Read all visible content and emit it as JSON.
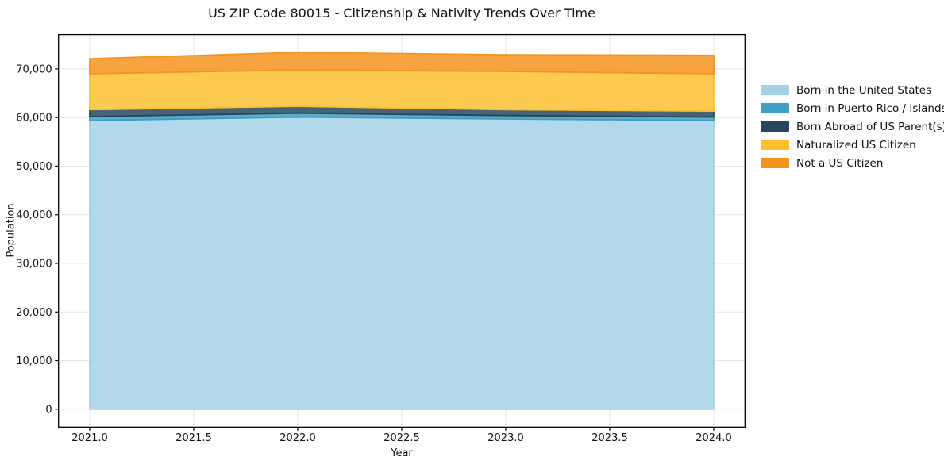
{
  "title": "US ZIP Code 80015 - Citizenship & Nativity Trends Over Time",
  "chart_data": {
    "type": "area",
    "stacked": true,
    "title": "US ZIP Code 80015 - Citizenship & Nativity Trends Over Time",
    "xlabel": "Year",
    "ylabel": "Population",
    "x": [
      2021,
      2022,
      2023,
      2024
    ],
    "series": [
      {
        "name": "Born in the United States",
        "color": "#a5d1e8",
        "values": [
          59400,
          60100,
          59700,
          59400
        ]
      },
      {
        "name": "Born in Puerto Rico / Islands",
        "color": "#3d9fc2",
        "values": [
          800,
          800,
          700,
          700
        ]
      },
      {
        "name": "Born Abroad of US Parent(s)",
        "color": "#27485c",
        "values": [
          1400,
          1400,
          1200,
          1200
        ]
      },
      {
        "name": "Naturalized US Citizen",
        "color": "#fcc133",
        "values": [
          7400,
          7500,
          7900,
          7700
        ]
      },
      {
        "name": "Not a US Citizen",
        "color": "#f6931e",
        "values": [
          3100,
          3600,
          3400,
          3800
        ]
      }
    ],
    "totals": [
      72100,
      73400,
      72900,
      72800
    ],
    "xticks": [
      2021.0,
      2021.5,
      2022.0,
      2022.5,
      2023.0,
      2023.5,
      2024.0
    ],
    "xtick_labels": [
      "2021.0",
      "2021.5",
      "2022.0",
      "2022.5",
      "2023.0",
      "2023.5",
      "2024.0"
    ],
    "yticks": [
      0,
      10000,
      20000,
      30000,
      40000,
      50000,
      60000,
      70000
    ],
    "ytick_labels": [
      "0",
      "10,000",
      "20,000",
      "30,000",
      "40,000",
      "50,000",
      "60,000",
      "70,000"
    ],
    "xlim": [
      2020.85,
      2024.15
    ],
    "ylim": [
      -3670,
      77070
    ],
    "grid": true,
    "grid_color": "#e7e7e7",
    "fill_opacity": 0.85,
    "spine_color": "#000000",
    "legend_position": "right-outside"
  }
}
